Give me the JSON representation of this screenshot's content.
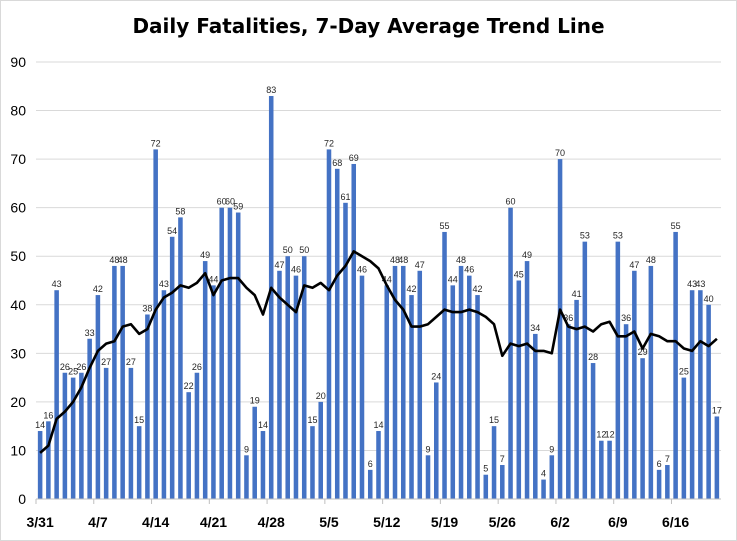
{
  "chart_data": {
    "type": "bar",
    "title": "Daily Fatalities, 7-Day Average Trend Line",
    "xlabel": "",
    "ylabel": "",
    "ylim": [
      0,
      90
    ],
    "yticks": [
      0,
      10,
      20,
      30,
      40,
      50,
      60,
      70,
      80,
      90
    ],
    "grid": true,
    "legend": "none",
    "x_tick_labels": [
      {
        "index": 0,
        "label": "3/31"
      },
      {
        "index": 7,
        "label": "4/7"
      },
      {
        "index": 14,
        "label": "4/14"
      },
      {
        "index": 21,
        "label": "4/21"
      },
      {
        "index": 28,
        "label": "4/28"
      },
      {
        "index": 35,
        "label": "5/5"
      },
      {
        "index": 42,
        "label": "5/12"
      },
      {
        "index": 49,
        "label": "5/19"
      },
      {
        "index": 56,
        "label": "5/26"
      },
      {
        "index": 63,
        "label": "6/2"
      },
      {
        "index": 70,
        "label": "6/9"
      },
      {
        "index": 77,
        "label": "6/16"
      }
    ],
    "series": [
      {
        "type": "bar",
        "color": "#4472c4",
        "values": [
          14,
          16,
          43,
          26,
          25,
          26,
          33,
          42,
          27,
          48,
          48,
          27,
          15,
          38,
          72,
          43,
          54,
          58,
          22,
          26,
          49,
          44,
          60,
          60,
          59,
          9,
          19,
          14,
          83,
          47,
          50,
          46,
          50,
          15,
          20,
          72,
          68,
          61,
          69,
          46,
          6,
          14,
          44,
          48,
          48,
          42,
          47,
          9,
          24,
          55,
          44,
          48,
          46,
          42,
          5,
          15,
          7,
          60,
          45,
          49,
          34,
          4,
          9,
          70,
          36,
          41,
          53,
          28,
          12,
          12,
          53,
          36,
          47,
          29,
          48,
          6,
          7,
          55,
          25,
          43,
          43,
          40,
          17
        ]
      },
      {
        "type": "line",
        "color": "#000000",
        "values": [
          9.5,
          11,
          16.5,
          18,
          20,
          23,
          27,
          30.5,
          32,
          32.5,
          35.5,
          36,
          34,
          35,
          39,
          41.5,
          42.5,
          44,
          43.5,
          44.5,
          46.5,
          42,
          45,
          45.5,
          45.5,
          43.5,
          42,
          38,
          43.5,
          41.5,
          40,
          38.5,
          44,
          43.5,
          44.5,
          43,
          46,
          48,
          51,
          50,
          49,
          47.5,
          44,
          41,
          39,
          35.5,
          35.5,
          36,
          37.5,
          39,
          38.5,
          38.5,
          39,
          38.5,
          37.5,
          36,
          29.5,
          32,
          31.5,
          32,
          30.5,
          30.5,
          30,
          39,
          35.5,
          35,
          35.5,
          34.5,
          36,
          36.5,
          33.5,
          33.5,
          34.5,
          31,
          34,
          33.5,
          32.5,
          32.5,
          31,
          30.5,
          32.5,
          31.5,
          33
        ]
      }
    ]
  }
}
